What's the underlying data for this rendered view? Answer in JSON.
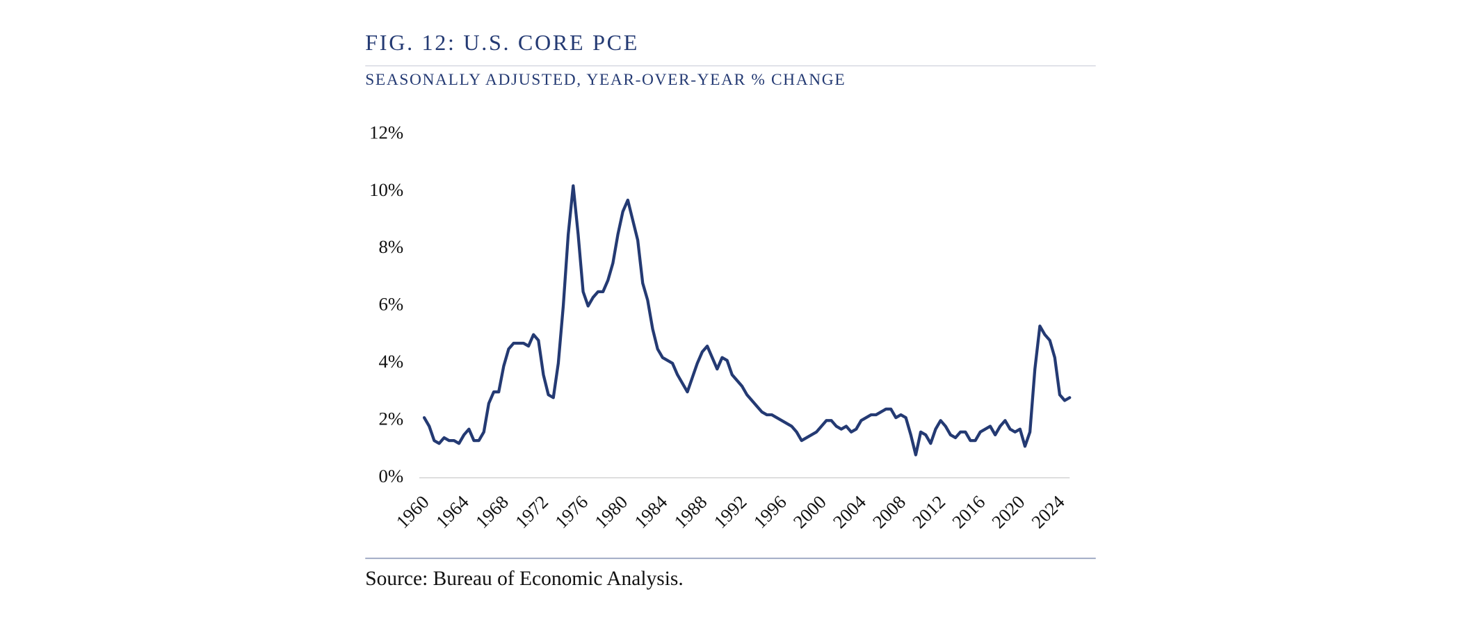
{
  "chart_data": {
    "type": "line",
    "title": "FIG. 12: U.S. CORE PCE",
    "subtitle": "SEASONALLY ADJUSTED, YEAR-OVER-YEAR % CHANGE",
    "source": "Source: Bureau of Economic Analysis.",
    "x": [
      1960,
      1960.5,
      1961,
      1961.5,
      1962,
      1962.5,
      1963,
      1963.5,
      1964,
      1964.5,
      1965,
      1965.5,
      1966,
      1966.5,
      1967,
      1967.5,
      1968,
      1968.5,
      1969,
      1969.5,
      1970,
      1970.5,
      1971,
      1971.5,
      1972,
      1972.5,
      1973,
      1973.5,
      1974,
      1974.5,
      1975,
      1975.5,
      1976,
      1976.5,
      1977,
      1977.5,
      1978,
      1978.5,
      1979,
      1979.5,
      1980,
      1980.5,
      1981,
      1981.5,
      1982,
      1982.5,
      1983,
      1983.5,
      1984,
      1984.5,
      1985,
      1985.5,
      1986,
      1986.5,
      1987,
      1987.5,
      1988,
      1988.5,
      1989,
      1989.5,
      1990,
      1990.5,
      1991,
      1991.5,
      1992,
      1992.5,
      1993,
      1993.5,
      1994,
      1994.5,
      1995,
      1995.5,
      1996,
      1996.5,
      1997,
      1997.5,
      1998,
      1998.5,
      1999,
      1999.5,
      2000,
      2000.5,
      2001,
      2001.5,
      2002,
      2002.5,
      2003,
      2003.5,
      2004,
      2004.5,
      2005,
      2005.5,
      2006,
      2006.5,
      2007,
      2007.5,
      2008,
      2008.5,
      2009,
      2009.5,
      2010,
      2010.5,
      2011,
      2011.5,
      2012,
      2012.5,
      2013,
      2013.5,
      2014,
      2014.5,
      2015,
      2015.5,
      2016,
      2016.5,
      2017,
      2017.5,
      2018,
      2018.5,
      2019,
      2019.5,
      2020,
      2020.5,
      2021,
      2021.5,
      2022,
      2022.5,
      2023,
      2023.5,
      2024,
      2024.5,
      2025
    ],
    "series": [
      {
        "name": "Core PCE",
        "color": "#243a73",
        "values": [
          2.1,
          1.8,
          1.3,
          1.2,
          1.4,
          1.3,
          1.3,
          1.2,
          1.5,
          1.7,
          1.3,
          1.3,
          1.6,
          2.6,
          3.0,
          3.0,
          3.9,
          4.5,
          4.7,
          4.7,
          4.7,
          4.6,
          5.0,
          4.8,
          3.6,
          2.9,
          2.8,
          4.0,
          6.0,
          8.5,
          10.2,
          8.5,
          6.5,
          6.0,
          6.3,
          6.5,
          6.5,
          6.9,
          7.5,
          8.5,
          9.3,
          9.7,
          9.0,
          8.3,
          6.8,
          6.2,
          5.2,
          4.5,
          4.2,
          4.1,
          4.0,
          3.6,
          3.3,
          3.0,
          3.5,
          4.0,
          4.4,
          4.6,
          4.2,
          3.8,
          4.2,
          4.1,
          3.6,
          3.4,
          3.2,
          2.9,
          2.7,
          2.5,
          2.3,
          2.2,
          2.2,
          2.1,
          2.0,
          1.9,
          1.8,
          1.6,
          1.3,
          1.4,
          1.5,
          1.6,
          1.8,
          2.0,
          2.0,
          1.8,
          1.7,
          1.8,
          1.6,
          1.7,
          2.0,
          2.1,
          2.2,
          2.2,
          2.3,
          2.4,
          2.4,
          2.1,
          2.2,
          2.1,
          1.5,
          0.8,
          1.6,
          1.5,
          1.2,
          1.7,
          2.0,
          1.8,
          1.5,
          1.4,
          1.6,
          1.6,
          1.3,
          1.3,
          1.6,
          1.7,
          1.8,
          1.5,
          1.8,
          2.0,
          1.7,
          1.6,
          1.7,
          1.1,
          1.6,
          3.8,
          5.3,
          5.0,
          4.8,
          4.2,
          2.9,
          2.7,
          2.8
        ]
      }
    ],
    "xlim": [
      1959.5,
      2025
    ],
    "xticks": [
      1960,
      1964,
      1968,
      1972,
      1976,
      1980,
      1984,
      1988,
      1992,
      1996,
      2000,
      2004,
      2008,
      2012,
      2016,
      2020,
      2024
    ],
    "ylim": [
      0,
      12
    ],
    "yticks": [
      {
        "value": 0,
        "label": "0%"
      },
      {
        "value": 2,
        "label": "2%"
      },
      {
        "value": 4,
        "label": "4%"
      },
      {
        "value": 6,
        "label": "6%"
      },
      {
        "value": 8,
        "label": "8%"
      },
      {
        "value": 10,
        "label": "10%"
      },
      {
        "value": 12,
        "label": "12%"
      }
    ]
  }
}
